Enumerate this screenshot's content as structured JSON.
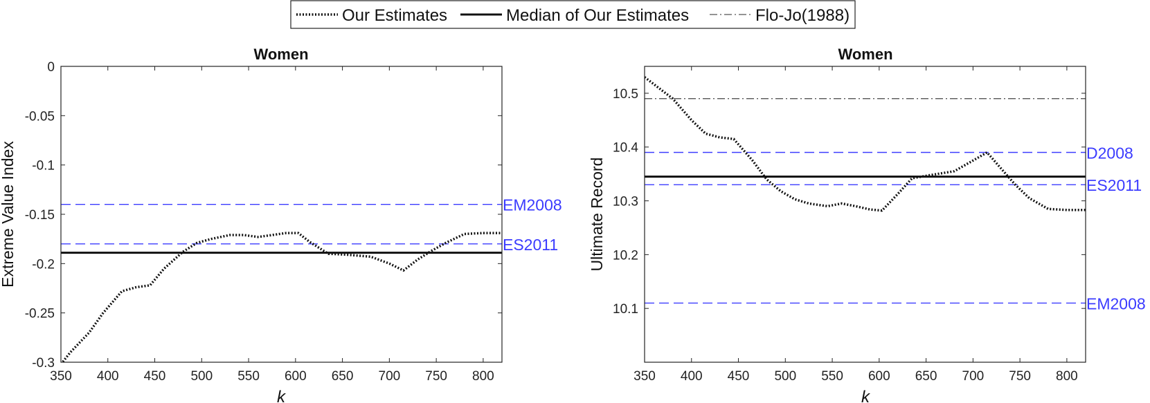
{
  "legend": {
    "entries": [
      {
        "label": "Our Estimates",
        "style": "dotted"
      },
      {
        "label": "Median of Our Estimates",
        "style": "solid"
      },
      {
        "label": "Flo-Jo(1988)",
        "style": "dashdot"
      }
    ]
  },
  "colors": {
    "reference": "#3b3bff",
    "estimates": "#111111",
    "florence": "#555555"
  },
  "chart_data": [
    {
      "type": "line",
      "title": "Women",
      "xlabel": "k",
      "ylabel": "Extreme Value Index",
      "xlim": [
        350,
        820
      ],
      "ylim": [
        -0.3,
        0
      ],
      "xticks": [
        350,
        400,
        450,
        500,
        550,
        600,
        650,
        700,
        750,
        800
      ],
      "yticks": [
        0,
        -0.05,
        -0.1,
        -0.15,
        -0.2,
        -0.25,
        -0.3
      ],
      "ytick_labels": [
        "0",
        "-0.05",
        "-0.1",
        "-0.15",
        "-0.2",
        "-0.25",
        "-0.3"
      ],
      "estimates": {
        "x": [
          350,
          360,
          380,
          395,
          415,
          430,
          445,
          460,
          480,
          495,
          510,
          530,
          545,
          560,
          575,
          590,
          603,
          615,
          635,
          655,
          680,
          700,
          715,
          730,
          745,
          760,
          780,
          800,
          820
        ],
        "y": [
          -0.302,
          -0.29,
          -0.27,
          -0.25,
          -0.228,
          -0.224,
          -0.222,
          -0.205,
          -0.188,
          -0.179,
          -0.175,
          -0.171,
          -0.171,
          -0.173,
          -0.171,
          -0.169,
          -0.169,
          -0.178,
          -0.19,
          -0.191,
          -0.193,
          -0.2,
          -0.207,
          -0.196,
          -0.187,
          -0.179,
          -0.17,
          -0.169,
          -0.169
        ]
      },
      "median": -0.189,
      "reference_lines": [
        {
          "label": "EM2008",
          "y": -0.14
        },
        {
          "label": "ES2011",
          "y": -0.18
        }
      ]
    },
    {
      "type": "line",
      "title": "Women",
      "xlabel": "k",
      "ylabel": "Ultimate Record",
      "xlim": [
        350,
        820
      ],
      "ylim": [
        10.0,
        10.55
      ],
      "xticks": [
        350,
        400,
        450,
        500,
        550,
        600,
        650,
        700,
        750,
        800
      ],
      "yticks": [
        10.1,
        10.2,
        10.3,
        10.4,
        10.5
      ],
      "ytick_labels": [
        "10.1",
        "10.2",
        "10.3",
        "10.4",
        "10.5"
      ],
      "estimates": {
        "x": [
          350,
          365,
          380,
          400,
          415,
          430,
          445,
          465,
          480,
          495,
          510,
          525,
          545,
          560,
          575,
          590,
          603,
          620,
          635,
          655,
          680,
          700,
          715,
          730,
          745,
          760,
          780,
          800,
          820
        ],
        "y": [
          10.53,
          10.51,
          10.49,
          10.45,
          10.425,
          10.418,
          10.415,
          10.375,
          10.34,
          10.318,
          10.303,
          10.295,
          10.29,
          10.295,
          10.29,
          10.284,
          10.282,
          10.313,
          10.342,
          10.348,
          10.355,
          10.375,
          10.39,
          10.36,
          10.33,
          10.305,
          10.285,
          10.283,
          10.283
        ]
      },
      "median": 10.345,
      "florence": 10.49,
      "reference_lines": [
        {
          "label": "D2008",
          "y": 10.39
        },
        {
          "label": "ES2011",
          "y": 10.33
        },
        {
          "label": "EM2008",
          "y": 10.11
        }
      ]
    }
  ]
}
